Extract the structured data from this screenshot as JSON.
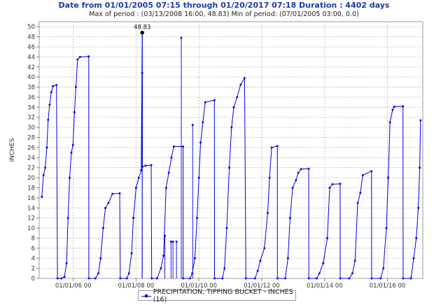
{
  "header": {
    "title": "Date from 01/01/2005 07:15 through 01/20/2017 07:18 Duration : 4402 days",
    "subtitle": "Max of period : (03/13/2008 16:00, 48.83)  Min of period: (07/01/2005 03:00,  0.0)"
  },
  "colors": {
    "series": "#0000e0",
    "title": "#1b3aa8",
    "grid": "#b8b8b8",
    "axis": "#808080"
  },
  "chart_data": {
    "type": "line",
    "title": "Date from 01/01/2005 07:15 through 01/20/2017 07:18 Duration : 4402 days",
    "subtitle": "Max of period : (03/13/2008 16:00, 48.83)  Min of period: (07/01/2005 03:00,  0.0)",
    "ylabel": "INCHES",
    "xlabel": "",
    "ylim": [
      0,
      51
    ],
    "yticks": [
      0,
      2,
      4,
      6,
      8,
      10,
      12,
      14,
      16,
      18,
      20,
      22,
      24,
      26,
      28,
      30,
      32,
      34,
      36,
      38,
      40,
      42,
      44,
      46,
      48,
      50
    ],
    "xlim": [
      "2004-12-01",
      "2017-02-15"
    ],
    "xticks": [
      "2006-01-01",
      "2008-01-01",
      "2010-01-01",
      "2012-01-01",
      "2014-01-01",
      "2016-01-01"
    ],
    "xtick_labels": [
      "01/01/06 00",
      "01/01/08 00",
      "01/01/10 00",
      "01/01/12 00",
      "01/01/14 00",
      "01/01/16 00"
    ],
    "grid": true,
    "legend_position": "bottom-center",
    "annotation": {
      "text": "48.83",
      "x": "2008-03-13",
      "y": 48.83
    },
    "series": [
      {
        "name": "PRECIPITATION, TIPPING BUCKET - INCHES (16)",
        "points": [
          [
            "2005-01-01",
            16.2
          ],
          [
            "2005-01-20",
            20.5
          ],
          [
            "2005-02-10",
            22.0
          ],
          [
            "2005-02-28",
            26.0
          ],
          [
            "2005-03-15",
            31.5
          ],
          [
            "2005-04-01",
            34.5
          ],
          [
            "2005-04-20",
            37.0
          ],
          [
            "2005-05-10",
            38.2
          ],
          [
            "2005-06-20",
            38.4
          ],
          [
            "2005-07-01",
            0.0
          ],
          [
            "2005-08-15",
            0.0
          ],
          [
            "2005-09-20",
            0.3
          ],
          [
            "2005-10-15",
            3.0
          ],
          [
            "2005-11-01",
            12.0
          ],
          [
            "2005-11-20",
            20.0
          ],
          [
            "2005-12-10",
            25.0
          ],
          [
            "2005-12-28",
            26.5
          ],
          [
            "2006-01-15",
            33.0
          ],
          [
            "2006-02-01",
            38.0
          ],
          [
            "2006-02-20",
            43.5
          ],
          [
            "2006-03-20",
            44.0
          ],
          [
            "2006-06-30",
            44.1
          ],
          [
            "2006-07-01",
            0.0
          ],
          [
            "2006-09-15",
            0.0
          ],
          [
            "2006-10-20",
            1.0
          ],
          [
            "2006-11-15",
            4.0
          ],
          [
            "2006-12-15",
            10.0
          ],
          [
            "2007-01-10",
            14.0
          ],
          [
            "2007-02-15",
            15.0
          ],
          [
            "2007-04-01",
            16.8
          ],
          [
            "2007-06-25",
            16.9
          ],
          [
            "2007-07-01",
            0.0
          ],
          [
            "2007-09-15",
            0.0
          ],
          [
            "2007-10-10",
            1.0
          ],
          [
            "2007-11-10",
            5.0
          ],
          [
            "2007-12-01",
            12.0
          ],
          [
            "2008-01-01",
            18.0
          ],
          [
            "2008-02-01",
            20.0
          ],
          [
            "2008-03-01",
            21.5
          ],
          [
            "2008-03-13",
            48.83
          ],
          [
            "2008-03-14",
            22.2
          ],
          [
            "2008-04-20",
            22.4
          ],
          [
            "2008-06-25",
            22.5
          ],
          [
            "2008-07-01",
            0.0
          ],
          [
            "2008-09-01",
            0.0
          ],
          [
            "2008-10-15",
            2.0
          ],
          [
            "2008-11-15",
            4.5
          ],
          [
            "2008-12-15",
            18.0
          ],
          [
            "2009-01-15",
            21.0
          ],
          [
            "2009-02-15",
            24.0
          ],
          [
            "2009-03-15",
            26.2
          ],
          [
            "2009-06-30",
            26.2
          ],
          [
            "2009-07-01",
            0.0
          ],
          [
            "2009-09-20",
            0.0
          ],
          [
            "2009-10-15",
            1.0
          ],
          [
            "2009-11-15",
            4.0
          ],
          [
            "2009-12-10",
            12.0
          ],
          [
            "2010-01-01",
            20.0
          ],
          [
            "2010-01-20",
            27.0
          ],
          [
            "2010-02-15",
            31.0
          ],
          [
            "2010-03-15",
            35.0
          ],
          [
            "2010-06-30",
            35.4
          ],
          [
            "2010-07-01",
            0.0
          ],
          [
            "2010-10-01",
            0.0
          ],
          [
            "2010-10-25",
            2.0
          ],
          [
            "2010-11-20",
            10.0
          ],
          [
            "2010-12-20",
            22.0
          ],
          [
            "2011-01-15",
            30.0
          ],
          [
            "2011-02-10",
            34.0
          ],
          [
            "2011-03-20",
            36.0
          ],
          [
            "2011-05-01",
            38.5
          ],
          [
            "2011-06-15",
            39.8
          ],
          [
            "2011-07-01",
            0.0
          ],
          [
            "2011-10-15",
            0.0
          ],
          [
            "2011-11-15",
            1.5
          ],
          [
            "2011-12-15",
            3.5
          ],
          [
            "2012-02-01",
            6.0
          ],
          [
            "2012-03-10",
            13.0
          ],
          [
            "2012-04-01",
            20.0
          ],
          [
            "2012-04-25",
            26.0
          ],
          [
            "2012-06-30",
            26.3
          ],
          [
            "2012-07-01",
            0.0
          ],
          [
            "2012-10-01",
            0.0
          ],
          [
            "2012-11-01",
            4.0
          ],
          [
            "2012-11-25",
            12.0
          ],
          [
            "2012-12-25",
            18.0
          ],
          [
            "2013-02-01",
            19.5
          ],
          [
            "2013-03-01",
            21.0
          ],
          [
            "2013-04-01",
            21.7
          ],
          [
            "2013-06-30",
            21.8
          ],
          [
            "2013-07-01",
            0.0
          ],
          [
            "2013-10-01",
            0.0
          ],
          [
            "2013-11-01",
            1.0
          ],
          [
            "2013-12-15",
            3.0
          ],
          [
            "2014-02-01",
            8.0
          ],
          [
            "2014-03-01",
            18.0
          ],
          [
            "2014-04-01",
            18.7
          ],
          [
            "2014-06-30",
            18.8
          ],
          [
            "2014-07-01",
            0.0
          ],
          [
            "2014-10-15",
            0.0
          ],
          [
            "2014-11-20",
            1.0
          ],
          [
            "2014-12-20",
            3.5
          ],
          [
            "2015-01-20",
            15.0
          ],
          [
            "2015-02-20",
            17.0
          ],
          [
            "2015-03-20",
            20.5
          ],
          [
            "2015-06-30",
            21.3
          ],
          [
            "2015-07-01",
            0.0
          ],
          [
            "2015-10-15",
            0.0
          ],
          [
            "2015-11-15",
            2.0
          ],
          [
            "2015-12-20",
            10.0
          ],
          [
            "2016-01-10",
            20.0
          ],
          [
            "2016-01-31",
            31.0
          ],
          [
            "2016-03-01",
            33.5
          ],
          [
            "2016-03-20",
            34.1
          ],
          [
            "2016-06-30",
            34.2
          ],
          [
            "2016-07-01",
            0.0
          ],
          [
            "2016-10-01",
            0.0
          ],
          [
            "2016-11-01",
            4.0
          ],
          [
            "2016-12-01",
            8.0
          ],
          [
            "2016-12-25",
            14.0
          ],
          [
            "2017-01-10",
            22.0
          ],
          [
            "2017-01-20",
            31.4
          ]
        ]
      },
      {
        "name": "",
        "role": "spikes",
        "points": [
          [
            "2008-03-12",
            40.8
          ],
          [
            "2009-06-10",
            47.8
          ],
          [
            "2009-10-20",
            30.5
          ],
          [
            "2009-02-10",
            7.3
          ],
          [
            "2009-03-05",
            7.3
          ],
          [
            "2009-04-15",
            7.3
          ],
          [
            "2008-12-01",
            8.5
          ]
        ]
      }
    ]
  },
  "legend": {
    "label": "PRECIPITATION, TIPPING BUCKET - INCHES (16)"
  }
}
